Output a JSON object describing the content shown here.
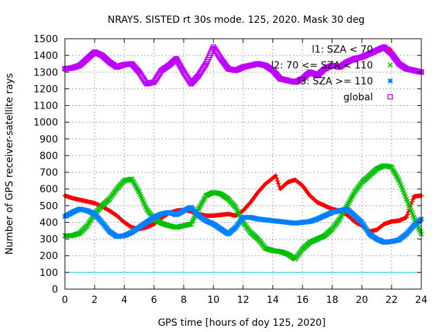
{
  "chart_data": {
    "type": "scatter",
    "title": "NRAYS. SISTED rt 30s mode. 125, 2020. Mask 30 deg",
    "xlabel": "GPS time [hours of doy 125, 2020]",
    "ylabel": "Number of GPS receiver-satellite rays",
    "xlim": [
      0,
      24
    ],
    "ylim": [
      0,
      1500
    ],
    "xticks": [
      "0",
      "2",
      "4",
      "6",
      "8",
      "10",
      "12",
      "14",
      "16",
      "18",
      "20",
      "22",
      "24"
    ],
    "yticks": [
      "0",
      "100",
      "200",
      "300",
      "400",
      "500",
      "600",
      "700",
      "800",
      "900",
      "1000",
      "1100",
      "1200",
      "1300",
      "1400",
      "1500"
    ],
    "grid": true,
    "legend_position": "top-right",
    "reference_line": {
      "y": 100,
      "color": "#00cccc"
    },
    "series": [
      {
        "name": "l1: SZA < 70",
        "color": "#ff0000",
        "marker": "+",
        "x": [
          0,
          0.5,
          1,
          1.5,
          2,
          2.5,
          3,
          3.5,
          4,
          4.5,
          5,
          5.5,
          6,
          6.5,
          7,
          7.5,
          8,
          8.5,
          9,
          9.5,
          10,
          10.5,
          11,
          11.5,
          12,
          12.5,
          13,
          13.5,
          14,
          14.2,
          14.5,
          15,
          15.5,
          16,
          16.5,
          17,
          17.5,
          18,
          18.5,
          19,
          19.5,
          20,
          20.5,
          21,
          21.5,
          22,
          22.5,
          23,
          23.5,
          24
        ],
        "y": [
          560,
          545,
          535,
          525,
          515,
          495,
          470,
          440,
          400,
          370,
          360,
          370,
          390,
          425,
          455,
          470,
          475,
          465,
          450,
          440,
          440,
          445,
          450,
          440,
          470,
          520,
          580,
          630,
          665,
          680,
          600,
          640,
          655,
          620,
          560,
          520,
          500,
          480,
          470,
          445,
          405,
          380,
          345,
          355,
          390,
          405,
          410,
          430,
          555,
          560
        ]
      },
      {
        "name": "l2: 70 <= SZA < 110",
        "color": "#00c000",
        "marker": "x",
        "x": [
          0,
          0.5,
          1,
          1.5,
          2,
          2.5,
          3,
          3.5,
          4,
          4.5,
          5,
          5.5,
          6,
          6.5,
          7,
          7.5,
          8,
          8.5,
          9,
          9.5,
          10,
          10.5,
          11,
          11.5,
          12,
          12.5,
          13,
          13.5,
          14,
          14.5,
          15,
          15.5,
          16,
          16.5,
          17,
          17.5,
          18,
          18.5,
          19,
          19.5,
          20,
          20.5,
          21,
          21.5,
          22,
          22.5,
          23,
          23.5,
          24
        ],
        "y": [
          320,
          320,
          335,
          380,
          450,
          500,
          540,
          600,
          650,
          660,
          580,
          480,
          420,
          395,
          380,
          370,
          380,
          390,
          480,
          560,
          580,
          570,
          540,
          490,
          400,
          340,
          300,
          245,
          230,
          225,
          210,
          180,
          240,
          280,
          300,
          320,
          360,
          420,
          500,
          580,
          640,
          680,
          720,
          740,
          730,
          650,
          540,
          430,
          330
        ]
      },
      {
        "name": "l3: SZA >= 110",
        "color": "#0080ff",
        "marker": "*",
        "x": [
          0,
          0.5,
          1,
          1.5,
          2,
          2.5,
          3,
          3.5,
          4,
          4.5,
          5,
          5.5,
          6,
          6.5,
          7,
          7.5,
          8,
          8.5,
          9,
          9.5,
          10,
          10.5,
          11,
          11.5,
          12,
          12.5,
          13,
          13.5,
          14,
          14.5,
          15,
          15.5,
          16,
          16.5,
          17,
          17.5,
          18,
          18.5,
          19,
          19.5,
          20,
          20.5,
          21,
          21.5,
          22,
          22.5,
          23,
          23.5,
          24
        ],
        "y": [
          435,
          460,
          480,
          470,
          450,
          400,
          345,
          315,
          320,
          340,
          370,
          400,
          430,
          450,
          460,
          445,
          470,
          490,
          440,
          410,
          390,
          360,
          330,
          370,
          430,
          430,
          420,
          415,
          410,
          405,
          400,
          395,
          400,
          405,
          420,
          440,
          460,
          470,
          480,
          440,
          400,
          330,
          300,
          280,
          285,
          295,
          330,
          380,
          420
        ]
      },
      {
        "name": "global",
        "color": "#c000ff",
        "marker": "square",
        "x": [
          0,
          0.5,
          1,
          1.5,
          2,
          2.5,
          3,
          3.5,
          4,
          4.5,
          5,
          5.5,
          6,
          6.5,
          7,
          7.5,
          8,
          8.5,
          9,
          9.5,
          10,
          10.5,
          11,
          11.5,
          12,
          12.5,
          13,
          13.5,
          14,
          14.5,
          15,
          15.5,
          16,
          16.5,
          17,
          17.5,
          18,
          18.5,
          19,
          19.5,
          20,
          20.5,
          21,
          21.5,
          22,
          22.5,
          23,
          23.5,
          24
        ],
        "y": [
          1320,
          1325,
          1340,
          1380,
          1420,
          1400,
          1360,
          1330,
          1345,
          1350,
          1300,
          1230,
          1240,
          1310,
          1340,
          1380,
          1300,
          1230,
          1280,
          1350,
          1450,
          1380,
          1320,
          1310,
          1330,
          1340,
          1350,
          1340,
          1310,
          1260,
          1250,
          1240,
          1260,
          1300,
          1280,
          1320,
          1340,
          1330,
          1360,
          1380,
          1390,
          1410,
          1430,
          1450,
          1410,
          1350,
          1320,
          1310,
          1300
        ]
      }
    ]
  }
}
